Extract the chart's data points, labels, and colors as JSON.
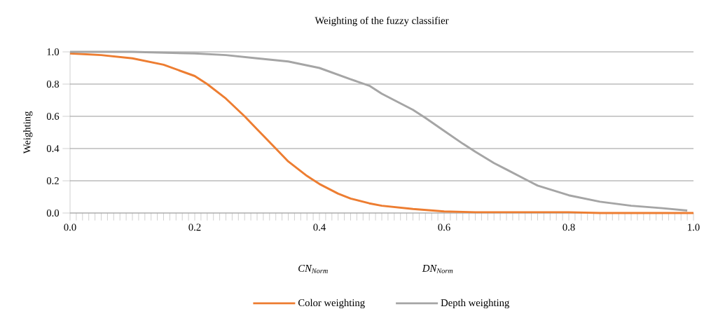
{
  "chart_data": {
    "type": "line",
    "title": "Weighting of the fuzzy classifier",
    "ylabel": "Weighting",
    "annotations": [
      "CN$_{Norm}$",
      "DN$_{Norm}$"
    ],
    "xlim": [
      0,
      1
    ],
    "ylim": [
      0,
      1
    ],
    "xticks": [
      {
        "value": 0,
        "label": "0.0"
      },
      {
        "value": 0.2,
        "label": "0.2"
      },
      {
        "value": 0.4,
        "label": "0.4"
      },
      {
        "value": 0.6,
        "label": "0.6"
      },
      {
        "value": 0.8,
        "label": "0.8"
      },
      {
        "value": 1,
        "label": "1.0"
      }
    ],
    "yticks": [
      {
        "value": 0,
        "label": "0.0"
      },
      {
        "value": 0.2,
        "label": "0.2"
      },
      {
        "value": 0.4,
        "label": "0.4"
      },
      {
        "value": 0.6,
        "label": "0.6"
      },
      {
        "value": 0.8,
        "label": "0.8"
      },
      {
        "value": 1,
        "label": "1.0"
      }
    ],
    "grid": "y",
    "legend": "bottom",
    "marker": "none",
    "line_style": "solid",
    "series": [
      {
        "name": "Color weighting",
        "color": "#ed7d31",
        "x": [
          0,
          0.05,
          0.1,
          0.15,
          0.2,
          0.22,
          0.25,
          0.28,
          0.3,
          0.33,
          0.35,
          0.38,
          0.4,
          0.43,
          0.45,
          0.48,
          0.5,
          0.55,
          0.6,
          0.65,
          0.8,
          0.85,
          1.0
        ],
        "values": [
          0.99,
          0.98,
          0.96,
          0.92,
          0.85,
          0.8,
          0.71,
          0.6,
          0.52,
          0.4,
          0.32,
          0.23,
          0.18,
          0.12,
          0.09,
          0.06,
          0.045,
          0.025,
          0.01,
          0.005,
          0.005,
          0.0,
          0.0
        ]
      },
      {
        "name": "Depth weighting",
        "color": "#a5a5a5",
        "x": [
          0,
          0.1,
          0.2,
          0.25,
          0.3,
          0.35,
          0.4,
          0.45,
          0.48,
          0.5,
          0.55,
          0.57,
          0.6,
          0.63,
          0.65,
          0.68,
          0.7,
          0.73,
          0.75,
          0.8,
          0.85,
          0.9,
          0.95,
          0.99
        ],
        "values": [
          1.0,
          1.0,
          0.99,
          0.98,
          0.96,
          0.94,
          0.9,
          0.83,
          0.79,
          0.74,
          0.64,
          0.59,
          0.51,
          0.43,
          0.38,
          0.31,
          0.27,
          0.21,
          0.17,
          0.11,
          0.07,
          0.045,
          0.03,
          0.015
        ]
      }
    ]
  }
}
